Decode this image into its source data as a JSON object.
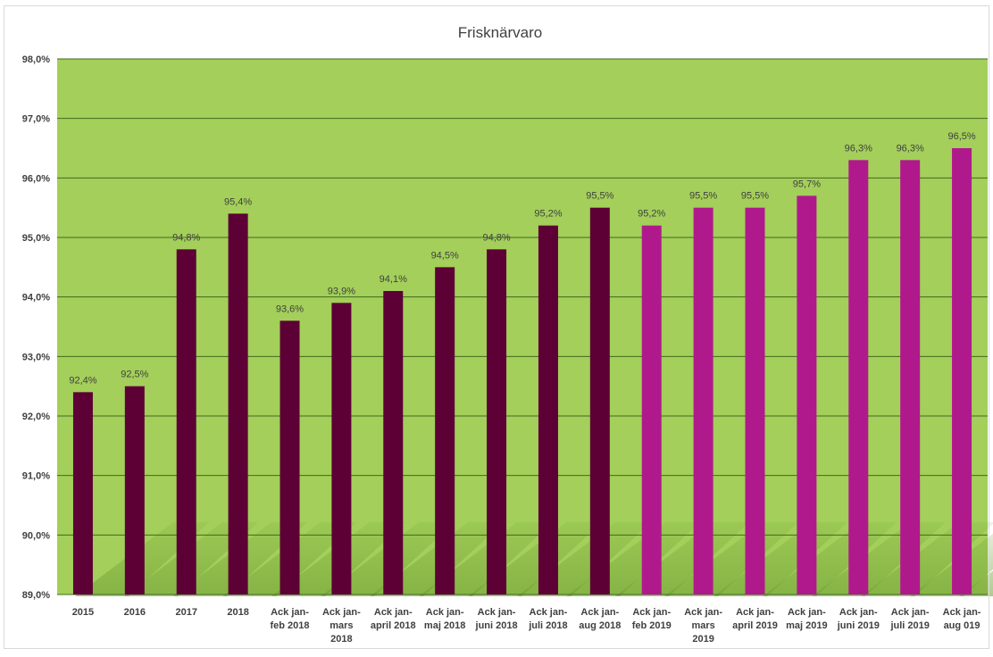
{
  "chart_data": {
    "type": "bar",
    "title": "Frisknärvaro",
    "xlabel": "",
    "ylabel": "",
    "ylim": [
      89.0,
      98.0
    ],
    "y_ticks": [
      "89,0%",
      "90,0%",
      "91,0%",
      "92,0%",
      "93,0%",
      "94,0%",
      "95,0%",
      "96,0%",
      "97,0%",
      "98,0%"
    ],
    "y_tick_values": [
      89,
      90,
      91,
      92,
      93,
      94,
      95,
      96,
      97,
      98
    ],
    "grid": true,
    "legend": "none",
    "categories": [
      [
        "2015"
      ],
      [
        "2016"
      ],
      [
        "2017"
      ],
      [
        "2018"
      ],
      [
        "Ack jan-",
        "feb 2018"
      ],
      [
        "Ack jan-",
        "mars",
        "2018"
      ],
      [
        "Ack jan-",
        "april 2018"
      ],
      [
        "Ack jan-",
        "maj 2018"
      ],
      [
        "Ack jan-",
        "juni 2018"
      ],
      [
        "Ack jan-",
        "juli 2018"
      ],
      [
        "Ack jan-",
        "aug 2018"
      ],
      [
        "Ack jan-",
        "feb 2019"
      ],
      [
        "Ack jan-",
        "mars",
        "2019"
      ],
      [
        "Ack jan-",
        "april 2019"
      ],
      [
        "Ack jan-",
        "maj 2019"
      ],
      [
        "Ack jan-",
        "juni 2019"
      ],
      [
        "Ack jan-",
        "juli 2019"
      ],
      [
        "Ack jan-",
        "aug 019"
      ]
    ],
    "values": [
      92.4,
      92.5,
      94.8,
      95.4,
      93.6,
      93.9,
      94.1,
      94.5,
      94.8,
      95.2,
      95.5,
      95.2,
      95.5,
      95.5,
      95.7,
      96.3,
      96.3,
      96.5
    ],
    "value_labels": [
      "92,4%",
      "92,5%",
      "94,8%",
      "95,4%",
      "93,6%",
      "93,9%",
      "94,1%",
      "94,5%",
      "94,8%",
      "95,2%",
      "95,5%",
      "95,2%",
      "95,5%",
      "95,5%",
      "95,7%",
      "96,3%",
      "96,3%",
      "96,5%"
    ],
    "colors": {
      "bar_2018": "#5c0036",
      "bar_2019": "#b0198c",
      "plot_background": "#a3cf5a",
      "gridline": "#3f6b1f",
      "stripe": "#6e9d33"
    },
    "bar_color_keys": [
      "bar_2018",
      "bar_2018",
      "bar_2018",
      "bar_2018",
      "bar_2018",
      "bar_2018",
      "bar_2018",
      "bar_2018",
      "bar_2018",
      "bar_2018",
      "bar_2018",
      "bar_2019",
      "bar_2019",
      "bar_2019",
      "bar_2019",
      "bar_2019",
      "bar_2019",
      "bar_2019"
    ]
  }
}
